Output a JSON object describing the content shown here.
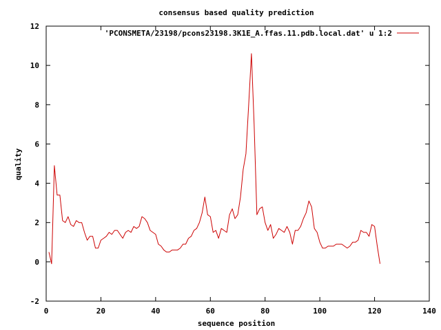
{
  "chart_data": {
    "type": "line",
    "title": "consensus based quality prediction",
    "xlabel": "sequence position",
    "ylabel": "quality",
    "xlim": [
      0,
      140
    ],
    "ylim": [
      -2,
      12
    ],
    "xticks": [
      "0",
      "20",
      "40",
      "60",
      "80",
      "100",
      "120",
      "140"
    ],
    "yticks": [
      "-2",
      "0",
      "2",
      "4",
      "6",
      "8",
      "10",
      "12"
    ],
    "grid": false,
    "legend_position": "top-right",
    "series": [
      {
        "name": "'PCONSMETA/23198/pcons23198.3K1E_A.ffas.11.pdb.local.dat' u 1:2",
        "color": "#cc0000",
        "x": [
          1,
          2,
          3,
          4,
          5,
          6,
          7,
          8,
          9,
          10,
          11,
          12,
          13,
          14,
          15,
          16,
          17,
          18,
          19,
          20,
          21,
          22,
          23,
          24,
          25,
          26,
          27,
          28,
          29,
          30,
          31,
          32,
          33,
          34,
          35,
          36,
          37,
          38,
          39,
          40,
          41,
          42,
          43,
          44,
          45,
          46,
          47,
          48,
          49,
          50,
          51,
          52,
          53,
          54,
          55,
          56,
          57,
          58,
          59,
          60,
          61,
          62,
          63,
          64,
          65,
          66,
          67,
          68,
          69,
          70,
          71,
          72,
          73,
          74,
          75,
          76,
          77,
          78,
          79,
          80,
          81,
          82,
          83,
          84,
          85,
          86,
          87,
          88,
          89,
          90,
          91,
          92,
          93,
          94,
          95,
          96,
          97,
          98,
          99,
          100,
          101,
          102,
          103,
          104,
          105,
          106,
          107,
          108,
          109,
          110,
          111,
          112,
          113,
          114,
          115,
          116,
          117,
          118,
          119,
          120,
          121,
          122
        ],
        "y": [
          0.5,
          -0.1,
          4.9,
          3.4,
          3.4,
          2.1,
          2.0,
          2.3,
          1.9,
          1.8,
          2.1,
          2.0,
          2.0,
          1.5,
          1.1,
          1.3,
          1.3,
          0.7,
          0.7,
          1.1,
          1.2,
          1.3,
          1.5,
          1.4,
          1.6,
          1.6,
          1.4,
          1.2,
          1.5,
          1.6,
          1.5,
          1.8,
          1.7,
          1.8,
          2.3,
          2.2,
          2.0,
          1.6,
          1.5,
          1.4,
          0.9,
          0.8,
          0.6,
          0.5,
          0.5,
          0.6,
          0.6,
          0.6,
          0.7,
          0.9,
          0.9,
          1.2,
          1.3,
          1.6,
          1.7,
          2.0,
          2.5,
          3.3,
          2.4,
          2.3,
          1.5,
          1.6,
          1.2,
          1.7,
          1.6,
          1.5,
          2.4,
          2.7,
          2.2,
          2.4,
          3.3,
          4.7,
          5.5,
          8.0,
          10.6,
          7.0,
          2.4,
          2.7,
          2.8,
          2.0,
          1.6,
          1.9,
          1.2,
          1.4,
          1.7,
          1.6,
          1.5,
          1.8,
          1.5,
          0.9,
          1.6,
          1.6,
          1.8,
          2.2,
          2.5,
          3.1,
          2.8,
          1.7,
          1.5,
          1.0,
          0.7,
          0.7,
          0.8,
          0.8,
          0.8,
          0.9,
          0.9,
          0.9,
          0.8,
          0.7,
          0.8,
          1.0,
          1.0,
          1.1,
          1.6,
          1.5,
          1.5,
          1.3,
          1.9,
          1.8,
          0.8,
          -0.1
        ]
      }
    ]
  }
}
